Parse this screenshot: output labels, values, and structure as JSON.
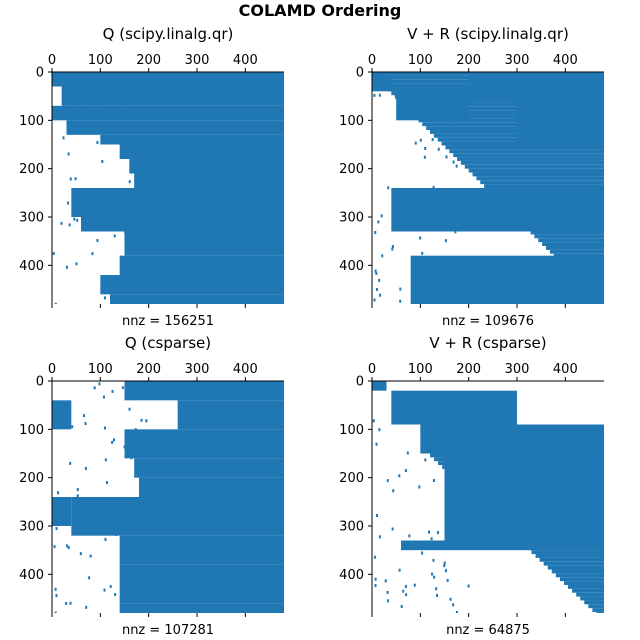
{
  "figure": {
    "suptitle": "COLAMD Ordering"
  },
  "chart_data": [
    {
      "type": "heatmap",
      "title": "Q (scipy.linalg.qr)",
      "xlabel": "nnz = 156251",
      "xticks": [
        0,
        100,
        200,
        300,
        400
      ],
      "yticks": [
        0,
        100,
        200,
        300,
        400
      ],
      "xlim": [
        0,
        480
      ],
      "ylim": [
        480,
        0
      ],
      "color": "#1f77b4",
      "pattern": "Q",
      "variant": "scipy",
      "nnz": 156251
    },
    {
      "type": "heatmap",
      "title": "V + R (scipy.linalg.qr)",
      "xlabel": "nnz = 109676",
      "xticks": [
        0,
        100,
        200,
        300,
        400
      ],
      "yticks": [
        0,
        100,
        200,
        300,
        400
      ],
      "xlim": [
        0,
        480
      ],
      "ylim": [
        480,
        0
      ],
      "color": "#1f77b4",
      "pattern": "VR",
      "variant": "scipy",
      "nnz": 109676
    },
    {
      "type": "heatmap",
      "title": "Q (csparse)",
      "xlabel": "nnz = 107281",
      "xticks": [
        0,
        100,
        200,
        300,
        400
      ],
      "yticks": [
        0,
        100,
        200,
        300,
        400
      ],
      "xlim": [
        0,
        480
      ],
      "ylim": [
        480,
        0
      ],
      "color": "#1f77b4",
      "pattern": "Q",
      "variant": "csparse",
      "nnz": 107281
    },
    {
      "type": "heatmap",
      "title": "V + R (csparse)",
      "xlabel": "nnz = 64875",
      "xticks": [
        0,
        100,
        200,
        300,
        400
      ],
      "yticks": [
        0,
        100,
        200,
        300,
        400
      ],
      "xlim": [
        0,
        480
      ],
      "ylim": [
        480,
        0
      ],
      "color": "#1f77b4",
      "pattern": "VR",
      "variant": "csparse",
      "nnz": 64875
    }
  ]
}
